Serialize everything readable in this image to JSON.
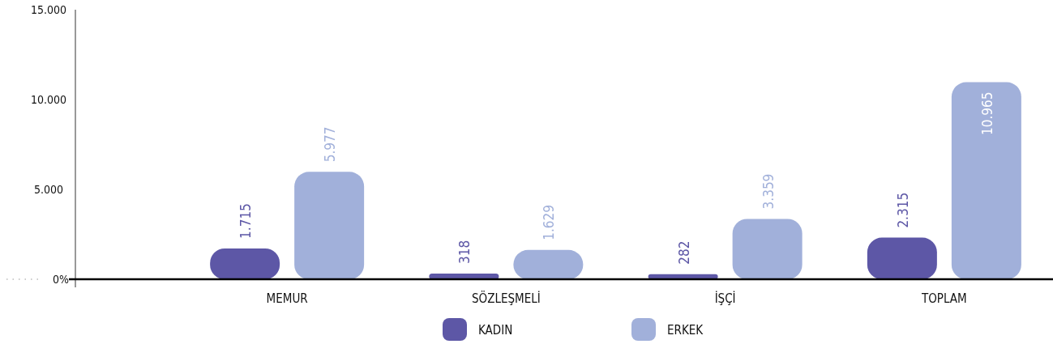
{
  "chart_data": {
    "type": "bar",
    "categories": [
      "MEMUR",
      "SÖZLEŞMELİ",
      "İŞÇİ",
      "TOPLAM"
    ],
    "series": [
      {
        "name": "KADIN",
        "color": "#5d57a6",
        "values": [
          1715,
          318,
          282,
          2315
        ],
        "value_labels": [
          "1.715",
          "318",
          "282",
          "2.315"
        ]
      },
      {
        "name": "ERKEK",
        "color": "#a1b0da",
        "values": [
          5977,
          1629,
          3359,
          10965
        ],
        "value_labels": [
          "5.977",
          "1.629",
          "3.359",
          "10.965"
        ]
      }
    ],
    "ylim": [
      0,
      15000
    ],
    "yticks": [
      {
        "value": 0,
        "label": "0%"
      },
      {
        "value": 5000,
        "label": "5.000"
      },
      {
        "value": 10000,
        "label": "10.000"
      },
      {
        "value": 15000,
        "label": "15.000"
      }
    ],
    "grid": false,
    "legend": "bottom"
  }
}
